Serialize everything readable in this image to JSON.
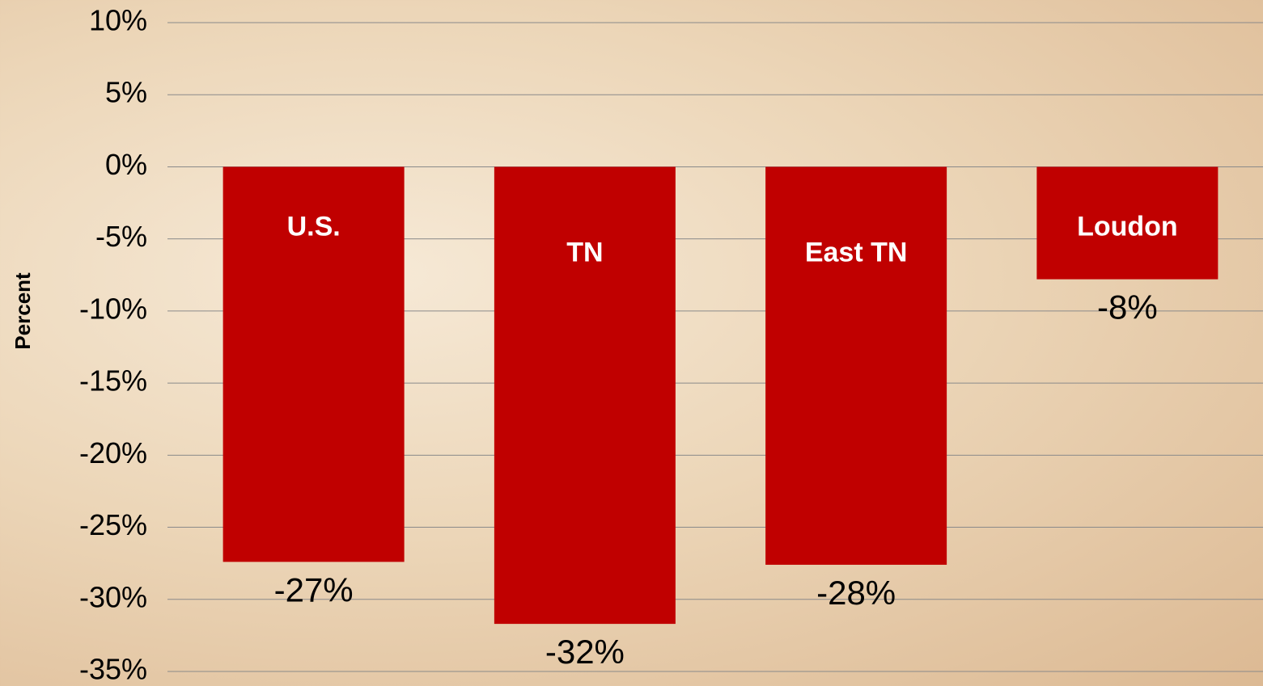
{
  "chart_data": {
    "type": "bar",
    "ylabel": "Percent",
    "categories": [
      "U.S.",
      "TN",
      "East TN",
      "Loudon"
    ],
    "values": [
      -27.4,
      -31.7,
      -27.6,
      -7.8
    ],
    "value_labels": [
      "-27%",
      "-32%",
      "-28%",
      "-8%"
    ],
    "color": "#c00000",
    "ylim": [
      -35,
      10
    ],
    "yticks": [
      {
        "value": -35,
        "label": "-35%"
      },
      {
        "value": -30,
        "label": "-30%"
      },
      {
        "value": -25,
        "label": "-25%"
      },
      {
        "value": -20,
        "label": "-20%"
      },
      {
        "value": -15,
        "label": "-15%"
      },
      {
        "value": -10,
        "label": "-10%"
      },
      {
        "value": -5,
        "label": "-5%"
      },
      {
        "value": 0,
        "label": "0%"
      },
      {
        "value": 5,
        "label": "5%"
      },
      {
        "value": 10,
        "label": "10%"
      }
    ],
    "grid": true
  }
}
